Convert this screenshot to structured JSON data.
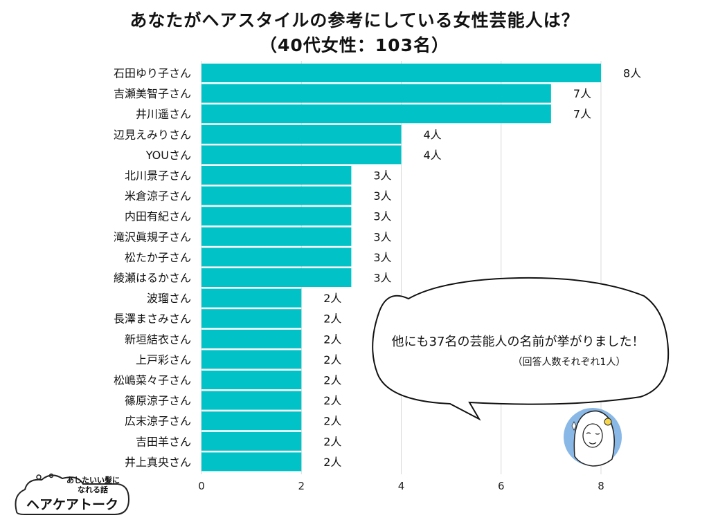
{
  "chart_data": {
    "type": "bar",
    "orientation": "horizontal",
    "title": "あなたがヘアスタイルの参考にしている女性芸能人は？",
    "subtitle": "（40代女性：103名）",
    "categories": [
      "石田ゆり子さん",
      "吉瀬美智子さん",
      "井川遥さん",
      "辺見えみりさん",
      "YOUさん",
      "北川景子さん",
      "米倉涼子さん",
      "内田有紀さん",
      "滝沢眞規子さん",
      "松たか子さん",
      "綾瀬はるかさん",
      "波瑠さん",
      "長澤まさみさん",
      "新垣結衣さん",
      "上戸彩さん",
      "松嶋菜々子さん",
      "篠原涼子さん",
      "広末涼子さん",
      "吉田羊さん",
      "井上真央さん"
    ],
    "values": [
      8,
      7,
      7,
      4,
      4,
      3,
      3,
      3,
      3,
      3,
      3,
      2,
      2,
      2,
      2,
      2,
      2,
      2,
      2,
      2
    ],
    "value_labels": [
      "8人",
      "7人",
      "7人",
      "4人",
      "4人",
      "3人",
      "3人",
      "3人",
      "3人",
      "3人",
      "3人",
      "2人",
      "2人",
      "2人",
      "2人",
      "2人",
      "2人",
      "2人",
      "2人",
      "2人"
    ],
    "xlim": [
      0,
      8
    ],
    "xticks": [
      "0",
      "2",
      "4",
      "6",
      "8"
    ],
    "grid": "vertical",
    "bar_color": "#00C2C7"
  },
  "annotation": {
    "main": "他にも37名の芸能人の名前が挙がりました！",
    "sub": "（回答人数それぞれ1人）"
  },
  "logo": {
    "small_line1": "あしたいい髪に",
    "small_line2": "なれる話",
    "name": "ヘアケアトーク"
  },
  "colors": {
    "bar": "#00C2C7",
    "grid": "#d9d9d9",
    "avatar_bg": "#8ab8e6"
  }
}
